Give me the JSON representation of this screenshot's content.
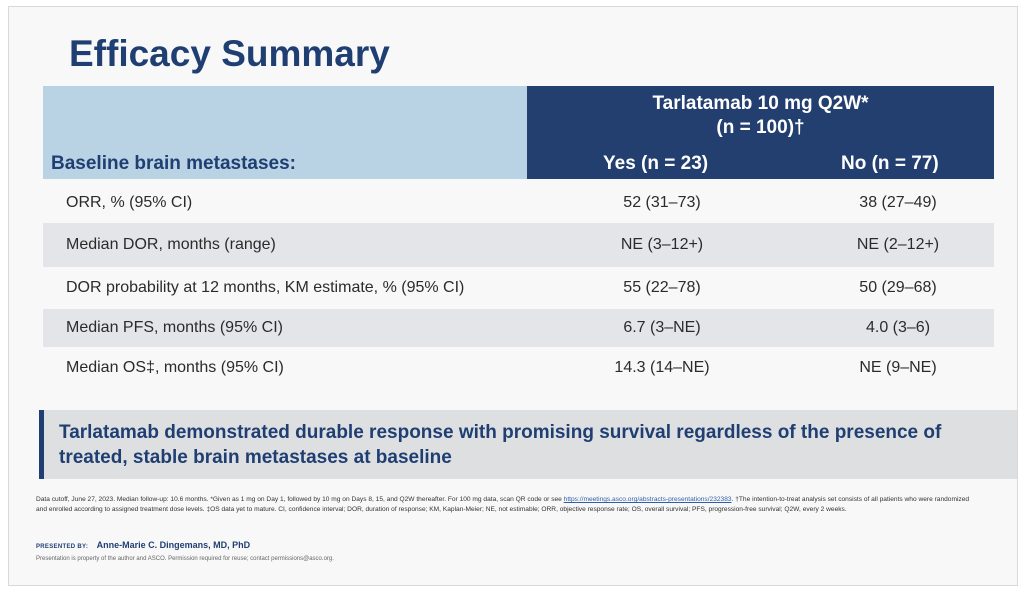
{
  "slide": {
    "title": "Efficacy Summary",
    "table": {
      "row_header": "Baseline brain metastases:",
      "drug_header_line1": "Tarlatamab 10 mg Q2W*",
      "drug_header_line2": "(n = 100)†",
      "col_yes": "Yes (n = 23)",
      "col_no": "No (n = 77)",
      "rows": [
        {
          "label": "ORR, % (95% CI)",
          "yes": "52 (31–73)",
          "no": "38 (27–49)"
        },
        {
          "label": "Median DOR, months (range)",
          "yes": "NE (3–12+)",
          "no": "NE (2–12+)"
        },
        {
          "label": "DOR probability at 12 months, KM estimate, % (95% CI)",
          "yes": "55 (22–78)",
          "no": "50 (29–68)"
        },
        {
          "label": "Median PFS, months (95% CI)",
          "yes": "6.7 (3–NE)",
          "no": "4.0 (3–6)"
        },
        {
          "label": "Median OS‡, months (95% CI)",
          "yes": "14.3  (14–NE)",
          "no": "NE (9–NE)"
        }
      ]
    },
    "callout": "Tarlatamab demonstrated durable response with promising survival regardless of the presence of treated, stable brain metastases at baseline",
    "footnote_part1": "Data cutoff, June 27, 2023. Median follow-up: 10.6 months. *Given as 1 mg on Day 1, followed by 10 mg on Days 8, 15, and Q2W thereafter. For 100 mg data, scan QR code or see ",
    "footnote_link": "https://meetings.asco.org/abstracts-presentations/232383",
    "footnote_part2": ". †The intention-to-treat analysis set consists of all patients who were randomized and enrolled according to assigned treatment dose levels. ‡OS data yet to mature. CI, confidence interval; DOR, duration of response; KM, Kaplan-Meier; NE, not estimable; ORR, objective response rate; OS, overall survival; PFS, progression-free survival; Q2W, every 2 weeks.",
    "presented_by_tag": "PRESENTED BY:",
    "presenter": "Anne-Marie C. Dingemans, MD, PhD",
    "rights": "Presentation is property of the author and ASCO. Permission required for reuse; contact permissions@asco.org."
  },
  "colors": {
    "title": "#1f3f73",
    "header_dark": "#233f70",
    "header_light": "#b9d2e4",
    "row_shade": "#e4e5e8"
  }
}
